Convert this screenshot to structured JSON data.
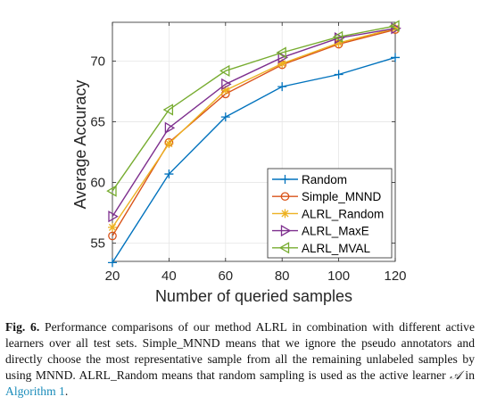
{
  "chart_data": {
    "type": "line",
    "xlabel": "Number of queried samples",
    "ylabel": "Average Accuracy",
    "x": [
      20,
      40,
      60,
      80,
      100,
      120
    ],
    "xlim": [
      20,
      120
    ],
    "ylim": [
      53.5,
      73.2
    ],
    "xticks": [
      20,
      40,
      60,
      80,
      100,
      120
    ],
    "yticks": [
      55,
      60,
      65,
      70
    ],
    "grid": true,
    "legend_position": "bottom-right",
    "series": [
      {
        "name": "Random",
        "color": "#0072BD",
        "marker": "plus",
        "values": [
          53.4,
          60.7,
          65.4,
          67.9,
          68.9,
          70.3
        ]
      },
      {
        "name": "Simple_MNND",
        "color": "#D95319",
        "marker": "circle",
        "values": [
          55.6,
          63.3,
          67.3,
          69.7,
          71.4,
          72.6
        ]
      },
      {
        "name": "ALRL_Random",
        "color": "#EDB120",
        "marker": "asterisk",
        "values": [
          56.3,
          63.2,
          67.6,
          69.8,
          71.5,
          72.7
        ]
      },
      {
        "name": "ALRL_MaxE",
        "color": "#7E2F8E",
        "marker": "triangle-right",
        "values": [
          57.2,
          64.5,
          68.1,
          70.3,
          71.9,
          72.7
        ]
      },
      {
        "name": "ALRL_MVAL",
        "color": "#77AC30",
        "marker": "triangle-left",
        "values": [
          59.3,
          66.0,
          69.2,
          70.7,
          72.0,
          72.9
        ]
      }
    ]
  },
  "caption": {
    "label": "Fig. 6.",
    "text_before": "Performance comparisons of our method ALRL in combination with different active learners over all test sets. Simple_MNND means that we ignore the pseudo annotators and directly choose the most representative sample from all the remaining unlabeled samples by using MNND. ALRL_Random means that random sampling is used as the active learner",
    "math_symbol": "𝒜",
    "text_middle": "in",
    "link_text": "Algorithm 1",
    "text_end": "."
  }
}
